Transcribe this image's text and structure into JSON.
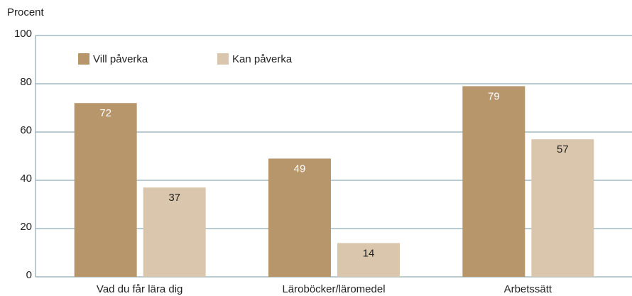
{
  "chart_data": {
    "type": "bar",
    "y_axis_label": "Procent",
    "categories": [
      "Vad du får lära dig",
      "Läroböcker/läromedel",
      "Arbetssätt"
    ],
    "series": [
      {
        "name": "Vill påverka",
        "color": "#b8966b",
        "values": [
          72,
          49,
          79
        ]
      },
      {
        "name": "Kan påverka",
        "color": "#d9c6ad",
        "values": [
          37,
          14,
          57
        ]
      }
    ],
    "ylim": [
      0,
      100
    ],
    "yticks": [
      0,
      20,
      40,
      60,
      80,
      100
    ],
    "grid": true,
    "legend": "top-left"
  }
}
